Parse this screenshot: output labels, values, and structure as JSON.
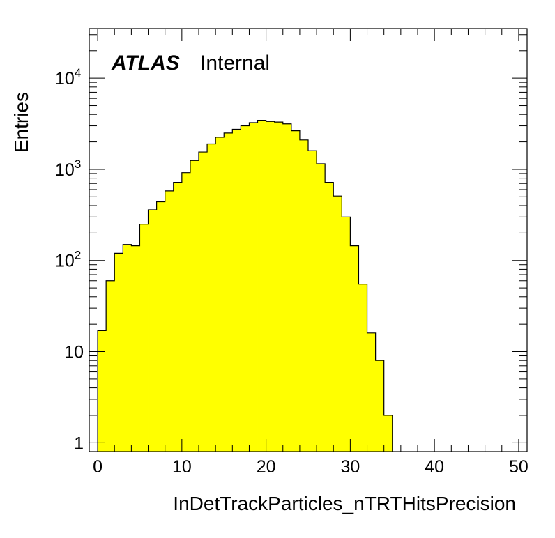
{
  "chart_data": {
    "type": "bar",
    "style": "histogram",
    "title": "",
    "xlabel": "InDetTrackParticles_nTRTHitsPrecision",
    "ylabel": "Entries",
    "xlim": [
      -1,
      51
    ],
    "ylim": [
      0.8,
      35000
    ],
    "y_scale": "log",
    "x_ticks": [
      "0",
      "10",
      "20",
      "30",
      "40",
      "50"
    ],
    "y_ticks": [
      "1",
      "10",
      "10^2",
      "10^3",
      "10^4"
    ],
    "bin_edges": [
      0,
      1,
      2,
      3,
      4,
      5,
      6,
      7,
      8,
      9,
      10,
      11,
      12,
      13,
      14,
      15,
      16,
      17,
      18,
      19,
      20,
      21,
      22,
      23,
      24,
      25,
      26,
      27,
      28,
      29,
      30,
      31,
      32,
      33,
      34,
      35
    ],
    "values": [
      17,
      60,
      120,
      150,
      145,
      250,
      360,
      440,
      580,
      720,
      920,
      1250,
      1550,
      1900,
      2250,
      2500,
      2750,
      3000,
      3250,
      3450,
      3350,
      3300,
      3150,
      2650,
      2100,
      1600,
      1150,
      720,
      510,
      300,
      145,
      55,
      16,
      8,
      2
    ],
    "fill_color": "#ffff00",
    "line_color": "#000000",
    "legend": "",
    "grid": false
  },
  "labels": {
    "atlas": "ATLAS",
    "internal": "Internal"
  }
}
